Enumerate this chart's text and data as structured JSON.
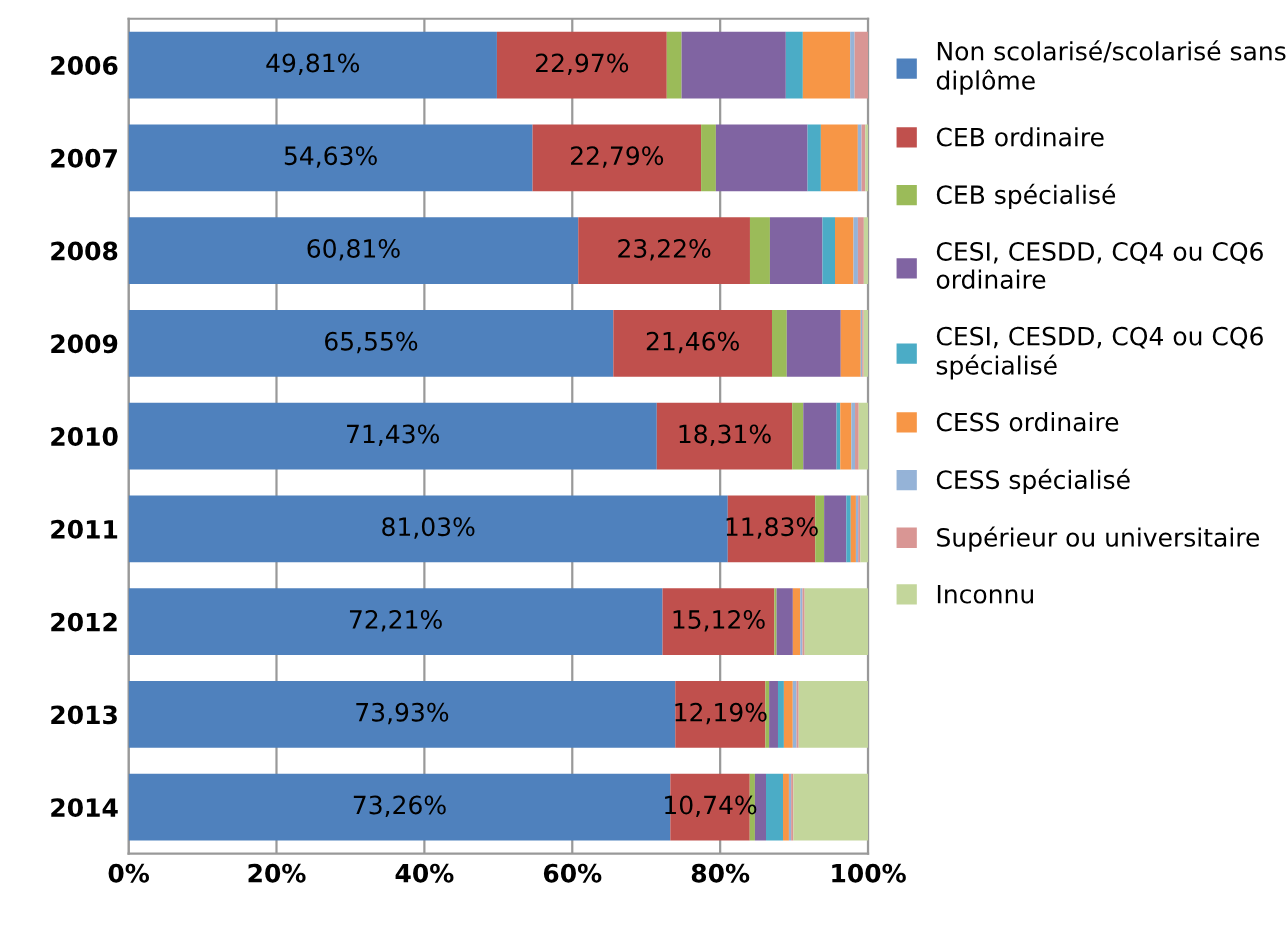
{
  "chart_data": {
    "type": "bar",
    "orientation": "horizontal",
    "stacked": true,
    "categories": [
      "2006",
      "2007",
      "2008",
      "2009",
      "2010",
      "2011",
      "2012",
      "2013",
      "2014"
    ],
    "series": [
      {
        "name": "Non scolarisé/scolarisé sans\ndiplôme",
        "color": "#4f81bd",
        "values": [
          49.81,
          54.63,
          60.81,
          65.55,
          71.43,
          81.03,
          72.21,
          73.93,
          73.26
        ],
        "value_labels": [
          "49,81%",
          "54,63%",
          "60,81%",
          "65,55%",
          "71,43%",
          "81,03%",
          "72,21%",
          "73,93%",
          "73,26%"
        ]
      },
      {
        "name": "CEB ordinaire",
        "color": "#c0504d",
        "values": [
          22.97,
          22.79,
          23.22,
          21.46,
          18.31,
          11.83,
          15.12,
          12.19,
          10.74
        ],
        "value_labels": [
          "22,97%",
          "22,79%",
          "23,22%",
          "21,46%",
          "18,31%",
          "11,83%",
          "15,12%",
          "12,19%",
          "10,74%"
        ]
      },
      {
        "name": "CEB spécialisé",
        "color": "#9bbb59",
        "values": [
          2.0,
          2.0,
          2.7,
          2.0,
          1.5,
          1.2,
          0.3,
          0.5,
          0.7
        ]
      },
      {
        "name": "CESI, CESDD, CQ4 ou CQ6\nordinaire",
        "color": "#8064a2",
        "values": [
          14.1,
          12.4,
          7.1,
          7.3,
          4.5,
          3.0,
          2.2,
          1.2,
          1.5
        ]
      },
      {
        "name": "CESI, CESDD, CQ4 ou CQ6\nspécialisé",
        "color": "#4bacc6",
        "values": [
          2.3,
          1.8,
          1.7,
          0,
          0.5,
          0.6,
          0,
          0.8,
          2.3
        ]
      },
      {
        "name": "CESS ordinaire",
        "color": "#f79646",
        "values": [
          6.4,
          5.0,
          2.5,
          2.7,
          1.5,
          0.7,
          1.0,
          1.2,
          0.8
        ]
      },
      {
        "name": "CESS spécialisé",
        "color": "#95b3d7",
        "values": [
          0.6,
          0.5,
          0.6,
          0.2,
          0.5,
          0.3,
          0.3,
          0.5,
          0.3
        ]
      },
      {
        "name": "Supérieur ou universitaire",
        "color": "#d99694",
        "values": [
          1.82,
          0.5,
          0.8,
          0.2,
          0.5,
          0.3,
          0.3,
          0.3,
          0.3
        ]
      },
      {
        "name": "Inconnu",
        "color": "#c3d69b",
        "values": [
          0,
          0.38,
          0.57,
          0.59,
          1.26,
          1.04,
          8.57,
          9.38,
          10.1
        ]
      }
    ],
    "xlim": [
      0,
      100
    ],
    "xticks": [
      {
        "value": 0,
        "label": "0%"
      },
      {
        "value": 20,
        "label": "20%"
      },
      {
        "value": 40,
        "label": "40%"
      },
      {
        "value": 60,
        "label": "60%"
      },
      {
        "value": 80,
        "label": "80%"
      },
      {
        "value": 100,
        "label": "100%"
      }
    ],
    "grid": "x",
    "legend": "right"
  }
}
